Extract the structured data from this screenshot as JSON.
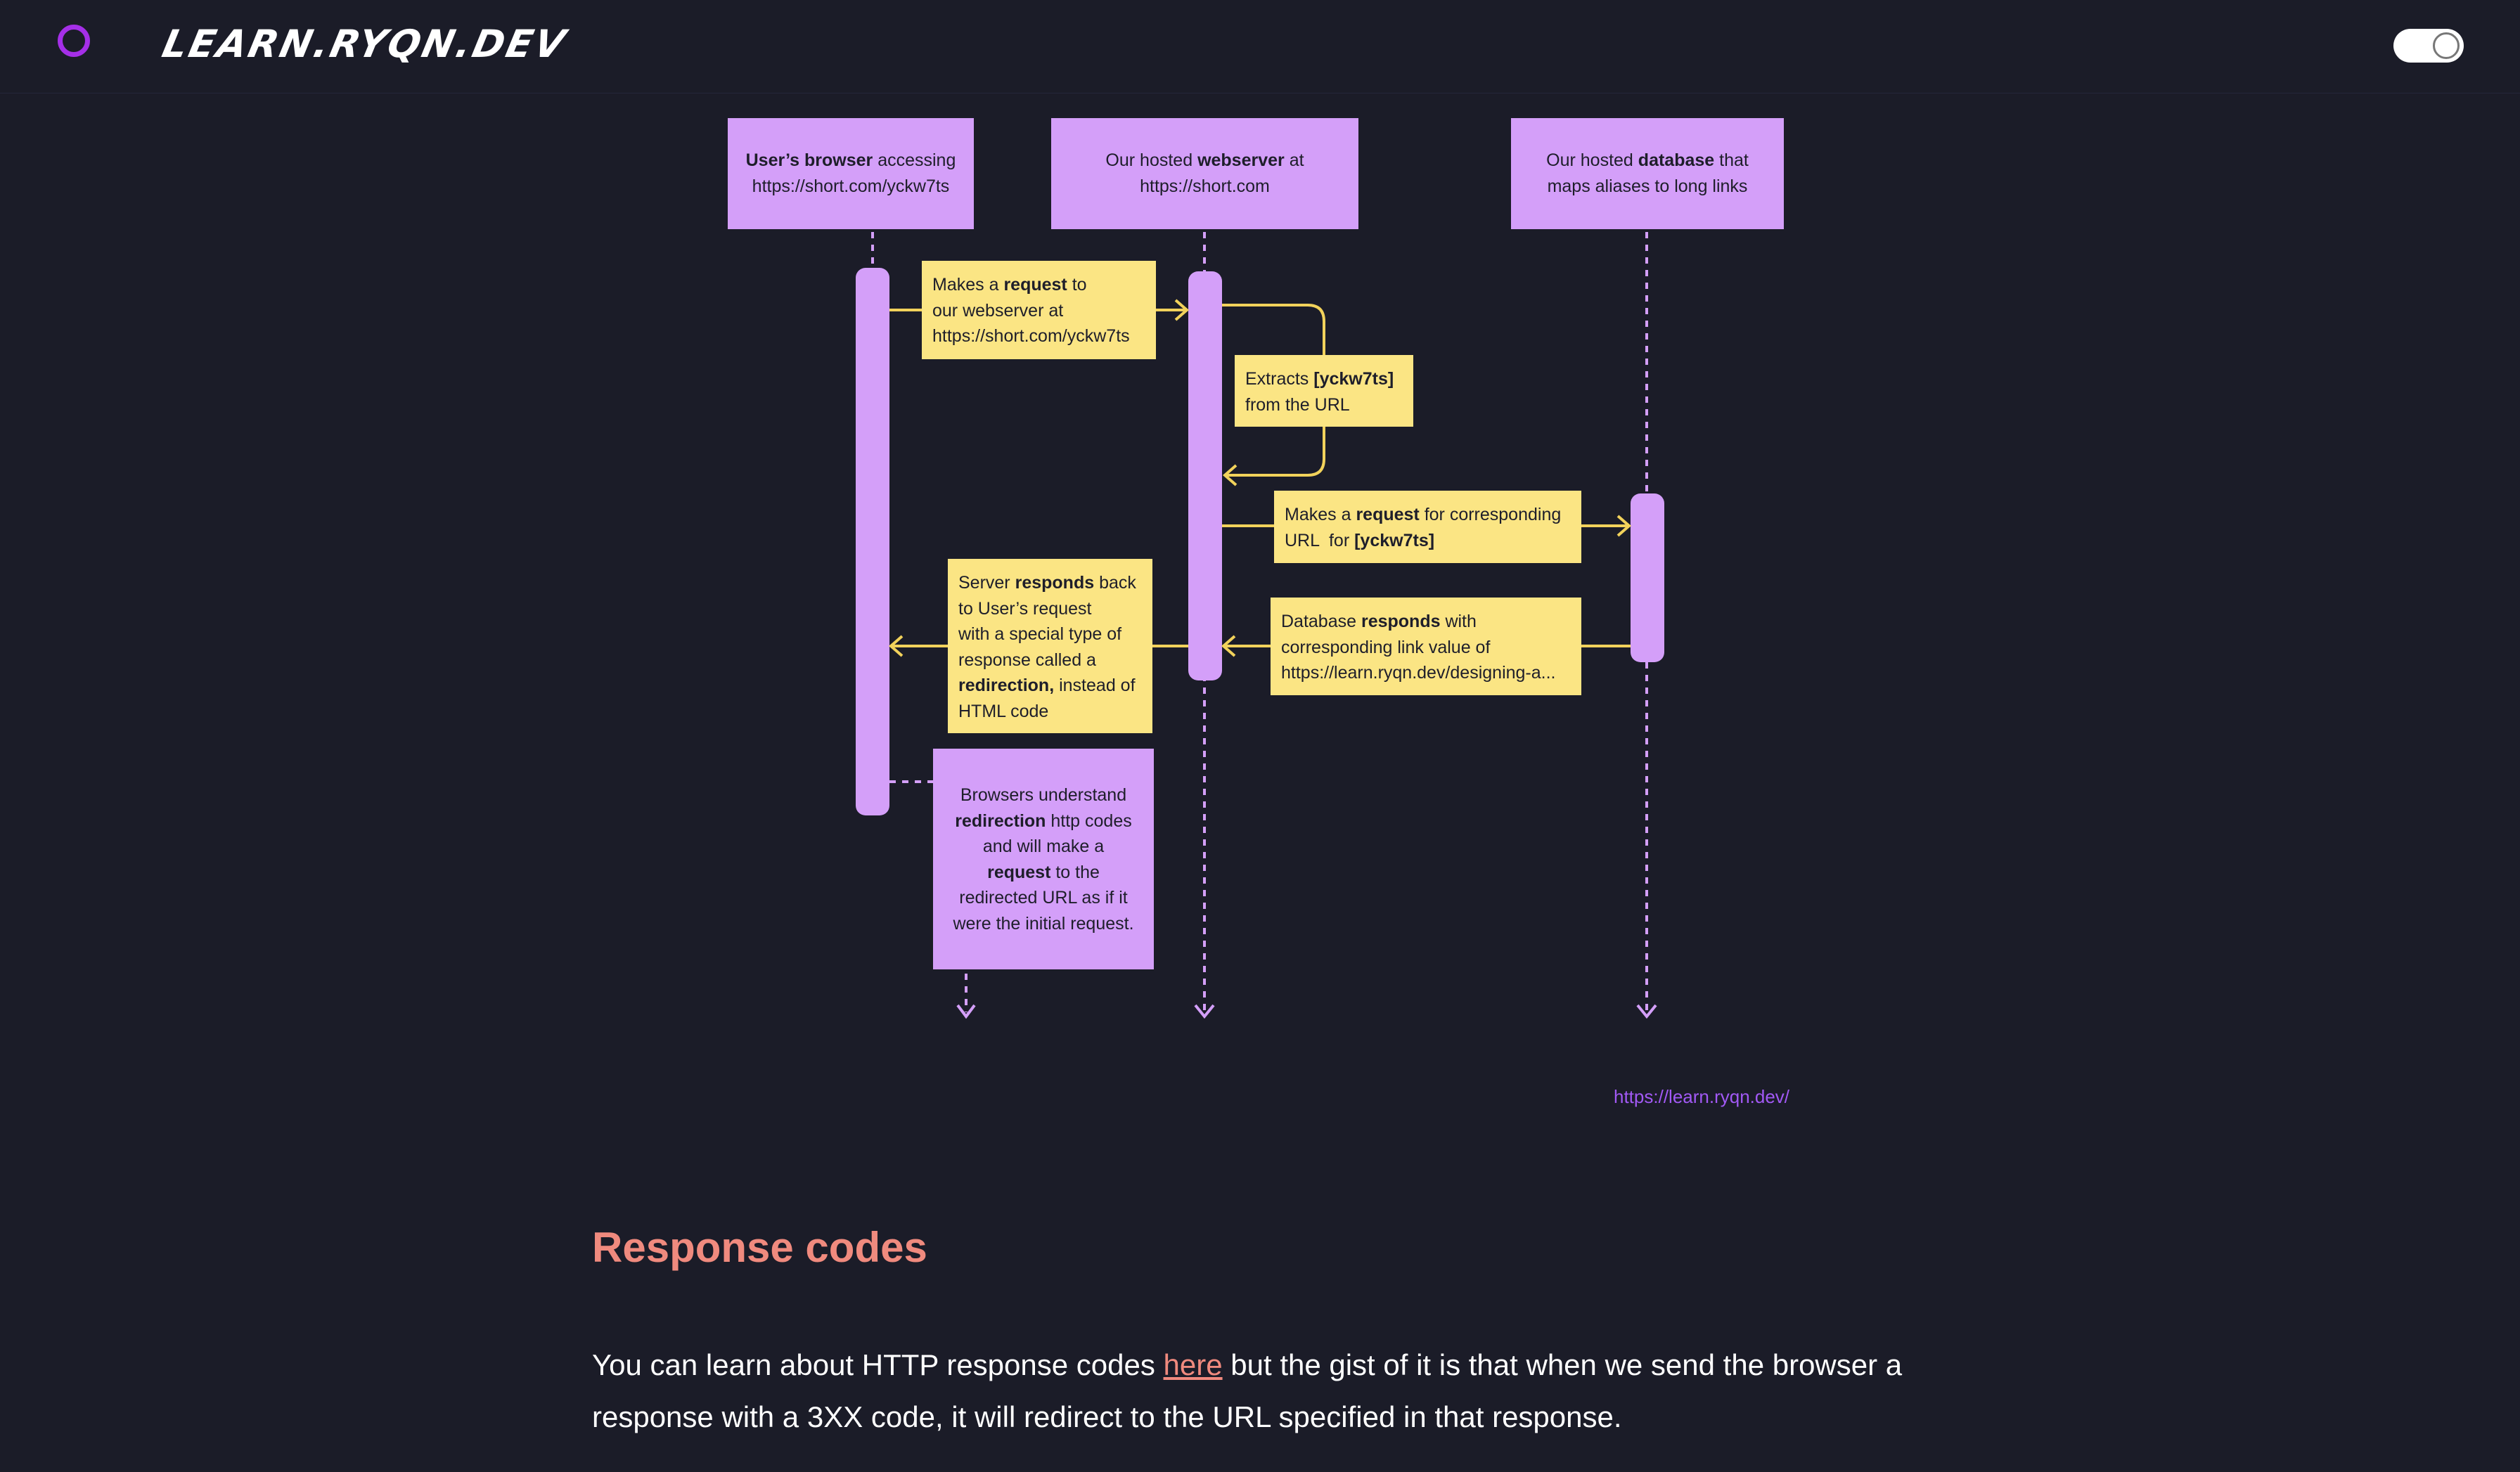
{
  "header": {
    "brand": "LEARN.RYQN.DEV",
    "theme_toggle": "dark-mode-toggle"
  },
  "diagram": {
    "actors": {
      "browser": {
        "bold": "User’s browser",
        "pre": "",
        "post": " accessing",
        "line2": "https://short.com/yckw7ts"
      },
      "webserver": {
        "pre": "Our hosted ",
        "bold": "webserver",
        "post": " at",
        "line2": "https://short.com"
      },
      "database": {
        "pre": "Our hosted ",
        "bold": "database",
        "post": " that",
        "line2": "maps aliases to long links"
      }
    },
    "notes": {
      "request_to_webserver": {
        "l1_pre": "Makes a ",
        "l1_bold": "request",
        "l1_post": " to",
        "l2": "our webserver at",
        "l3": "https://short.com/yckw7ts"
      },
      "extracts": {
        "l1_pre": "Extracts ",
        "l1_bold": "[yckw7ts]",
        "l2": "from the URL"
      },
      "request_to_db": {
        "l1_pre": "Makes a ",
        "l1_bold": "request",
        "l1_post": " for corresponding",
        "l2_pre": "URL  for ",
        "l2_bold": "[yckw7ts]"
      },
      "server_responds": {
        "l1_pre": "Server ",
        "l1_bold": "responds",
        "l1_post": " back",
        "l2": "to User’s request",
        "l3": "with a special type of",
        "l4": "response called a",
        "l5_bold": "redirection,",
        "l5_post": " instead of",
        "l6": "HTML code"
      },
      "db_responds": {
        "l1_pre": "Database ",
        "l1_bold": "responds",
        "l1_post": " with",
        "l2": "corresponding link value of",
        "l3": "https://learn.ryqn.dev/designing-a..."
      },
      "browser_redirect": {
        "l1": "Browsers understand",
        "l2_bold": "redirection",
        "l2_post": " http codes",
        "l3": "and will make a",
        "l4_bold": "request",
        "l4_post": " to the",
        "l5": "redirected URL as if it",
        "l6": "were the initial request."
      }
    },
    "credit": "https://learn.ryqn.dev/",
    "colors": {
      "lifeline": "#d49ff9",
      "arrow": "#f2d25b",
      "note_yellow": "#fbe584",
      "note_purple": "#d49ff9"
    }
  },
  "content": {
    "heading": "Response codes",
    "para_before_link": "You can learn about HTTP response codes ",
    "link_text": "here",
    "para_after_link": " but the gist of it is that when we send the browser a response with a 3XX code, it will redirect to the URL specified in that response."
  }
}
